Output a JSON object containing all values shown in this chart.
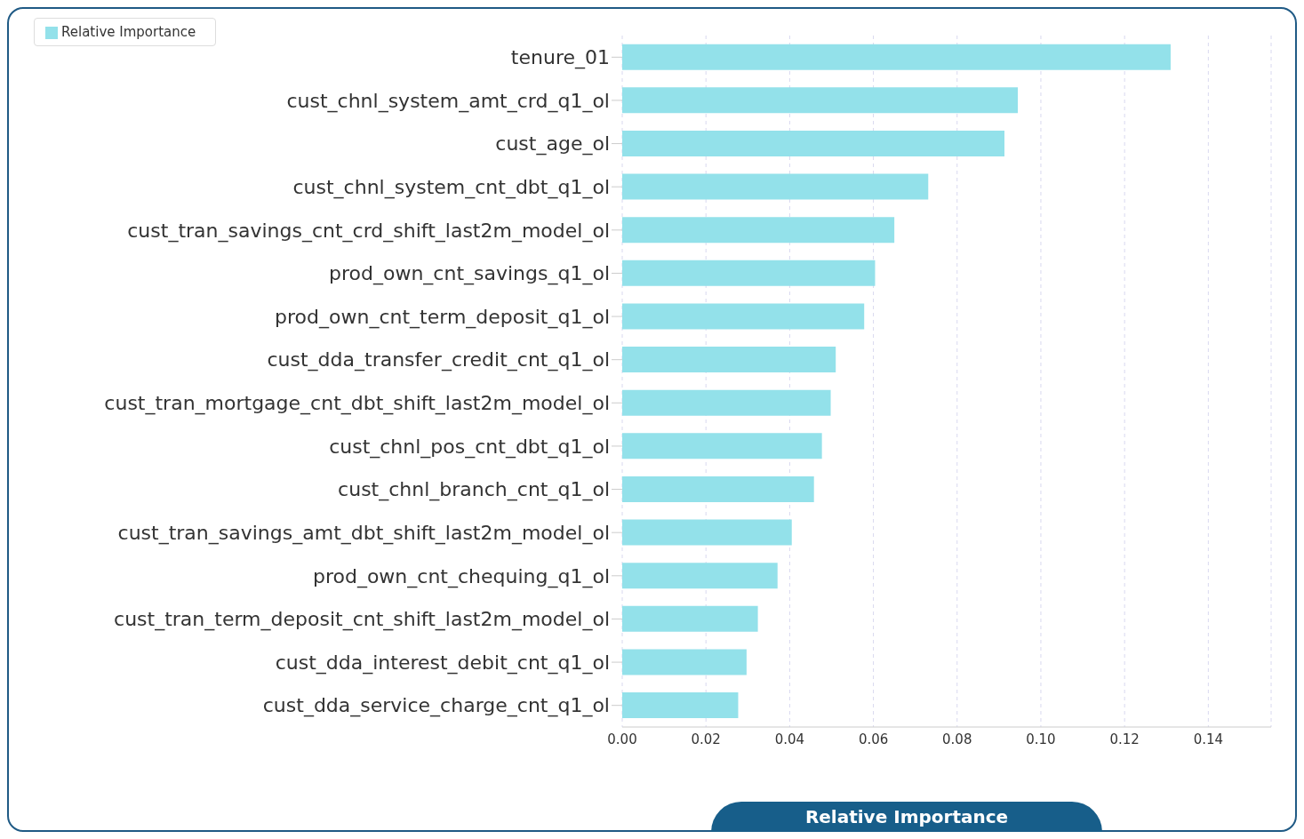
{
  "chart_data": {
    "type": "bar",
    "orientation": "horizontal",
    "xlabel": "Relative Importance",
    "categories": [
      "tenure_01",
      "cust_chnl_system_amt_crd_q1_ol",
      "cust_age_ol",
      "cust_chnl_system_cnt_dbt_q1_ol",
      "cust_tran_savings_cnt_crd_shift_last2m_model_ol",
      "prod_own_cnt_savings_q1_ol",
      "prod_own_cnt_term_deposit_q1_ol",
      "cust_dda_transfer_credit_cnt_q1_ol",
      "cust_tran_mortgage_cnt_dbt_shift_last2m_model_ol",
      "cust_chnl_pos_cnt_dbt_q1_ol",
      "cust_chnl_branch_cnt_q1_ol",
      "cust_tran_savings_amt_dbt_shift_last2m_model_ol",
      "prod_own_cnt_chequing_q1_ol",
      "cust_tran_term_deposit_cnt_shift_last2m_model_ol",
      "cust_dda_interest_debit_cnt_q1_ol",
      "cust_dda_service_charge_cnt_q1_ol"
    ],
    "series": [
      {
        "name": "Relative Importance",
        "color": "#93e1ea",
        "values": [
          0.131,
          0.0945,
          0.0913,
          0.0731,
          0.065,
          0.0604,
          0.0578,
          0.051,
          0.0498,
          0.0477,
          0.0458,
          0.0405,
          0.0371,
          0.0324,
          0.0297,
          0.0277
        ]
      }
    ],
    "xlim": [
      0,
      0.155
    ],
    "xticks": [
      {
        "value": 0,
        "label": "0.00"
      },
      {
        "value": 0.02,
        "label": "0.02"
      },
      {
        "value": 0.04,
        "label": "0.04"
      },
      {
        "value": 0.06,
        "label": "0.06"
      },
      {
        "value": 0.08,
        "label": "0.08"
      },
      {
        "value": 0.1,
        "label": "0.10"
      },
      {
        "value": 0.12,
        "label": "0.12"
      },
      {
        "value": 0.14,
        "label": "0.14"
      }
    ],
    "grid": "x",
    "legend": "top left"
  }
}
